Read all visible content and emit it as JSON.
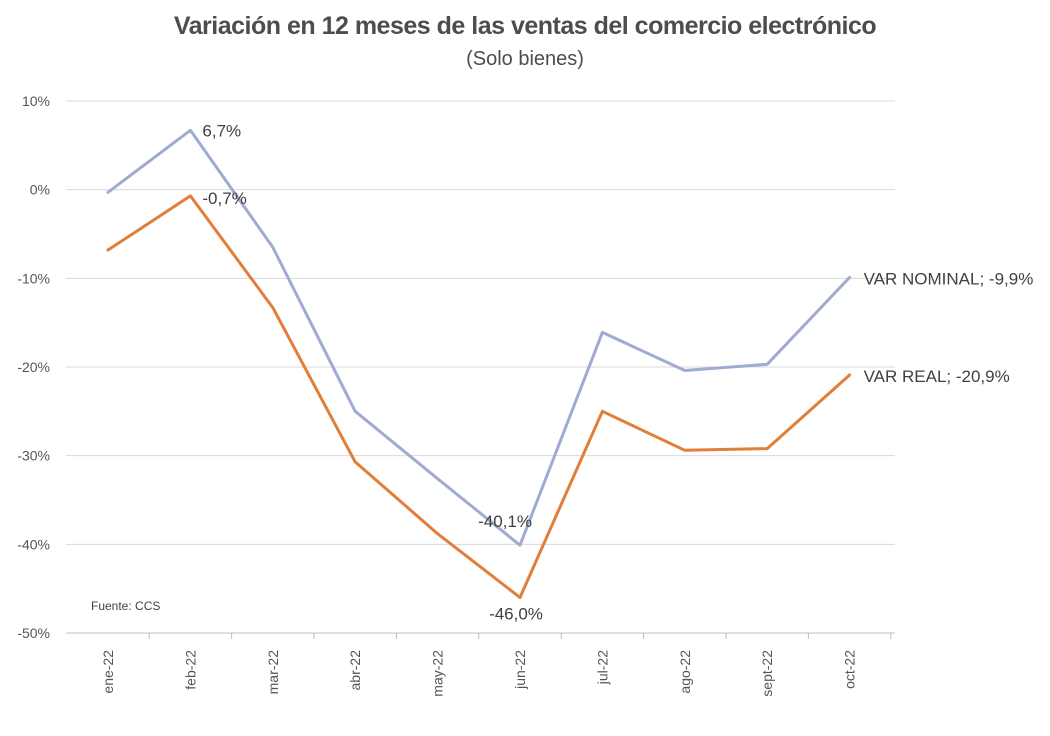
{
  "chart_data": {
    "type": "line",
    "title": "Variación en 12 meses de las ventas del comercio electrónico",
    "subtitle": "(Solo bienes)",
    "categories": [
      "ene-22",
      "feb-22",
      "mar-22",
      "abr-22",
      "may-22",
      "jun-22",
      "jul-22",
      "ago-22",
      "sept-22",
      "oct-22"
    ],
    "y_ticks": [
      "10%",
      "0%",
      "-10%",
      "-20%",
      "-30%",
      "-40%",
      "-50%"
    ],
    "ylim": [
      -50,
      10
    ],
    "grid": true,
    "legend": "none",
    "series": [
      {
        "name": "VAR NOMINAL",
        "color": "#9fabd3",
        "values": [
          -0.3,
          6.7,
          -6.5,
          -25.0,
          -32.6,
          -40.1,
          -16.1,
          -20.4,
          -19.7,
          -9.9
        ],
        "labels": [
          {
            "index": 1,
            "text": "6,7%"
          },
          {
            "index": 5,
            "text": "-40,1%"
          },
          {
            "index": 9,
            "text": "VAR NOMINAL; -9,9%"
          }
        ]
      },
      {
        "name": "VAR REAL",
        "color": "#e07e3a",
        "values": [
          -6.8,
          -0.7,
          -13.3,
          -30.7,
          -38.8,
          -46.0,
          -25.0,
          -29.4,
          -29.2,
          -20.9
        ],
        "labels": [
          {
            "index": 1,
            "text": "-0,7%"
          },
          {
            "index": 5,
            "text": "-46,0%"
          },
          {
            "index": 9,
            "text": "VAR REAL; -20,9%"
          }
        ]
      }
    ],
    "source": "Fuente: CCS"
  }
}
